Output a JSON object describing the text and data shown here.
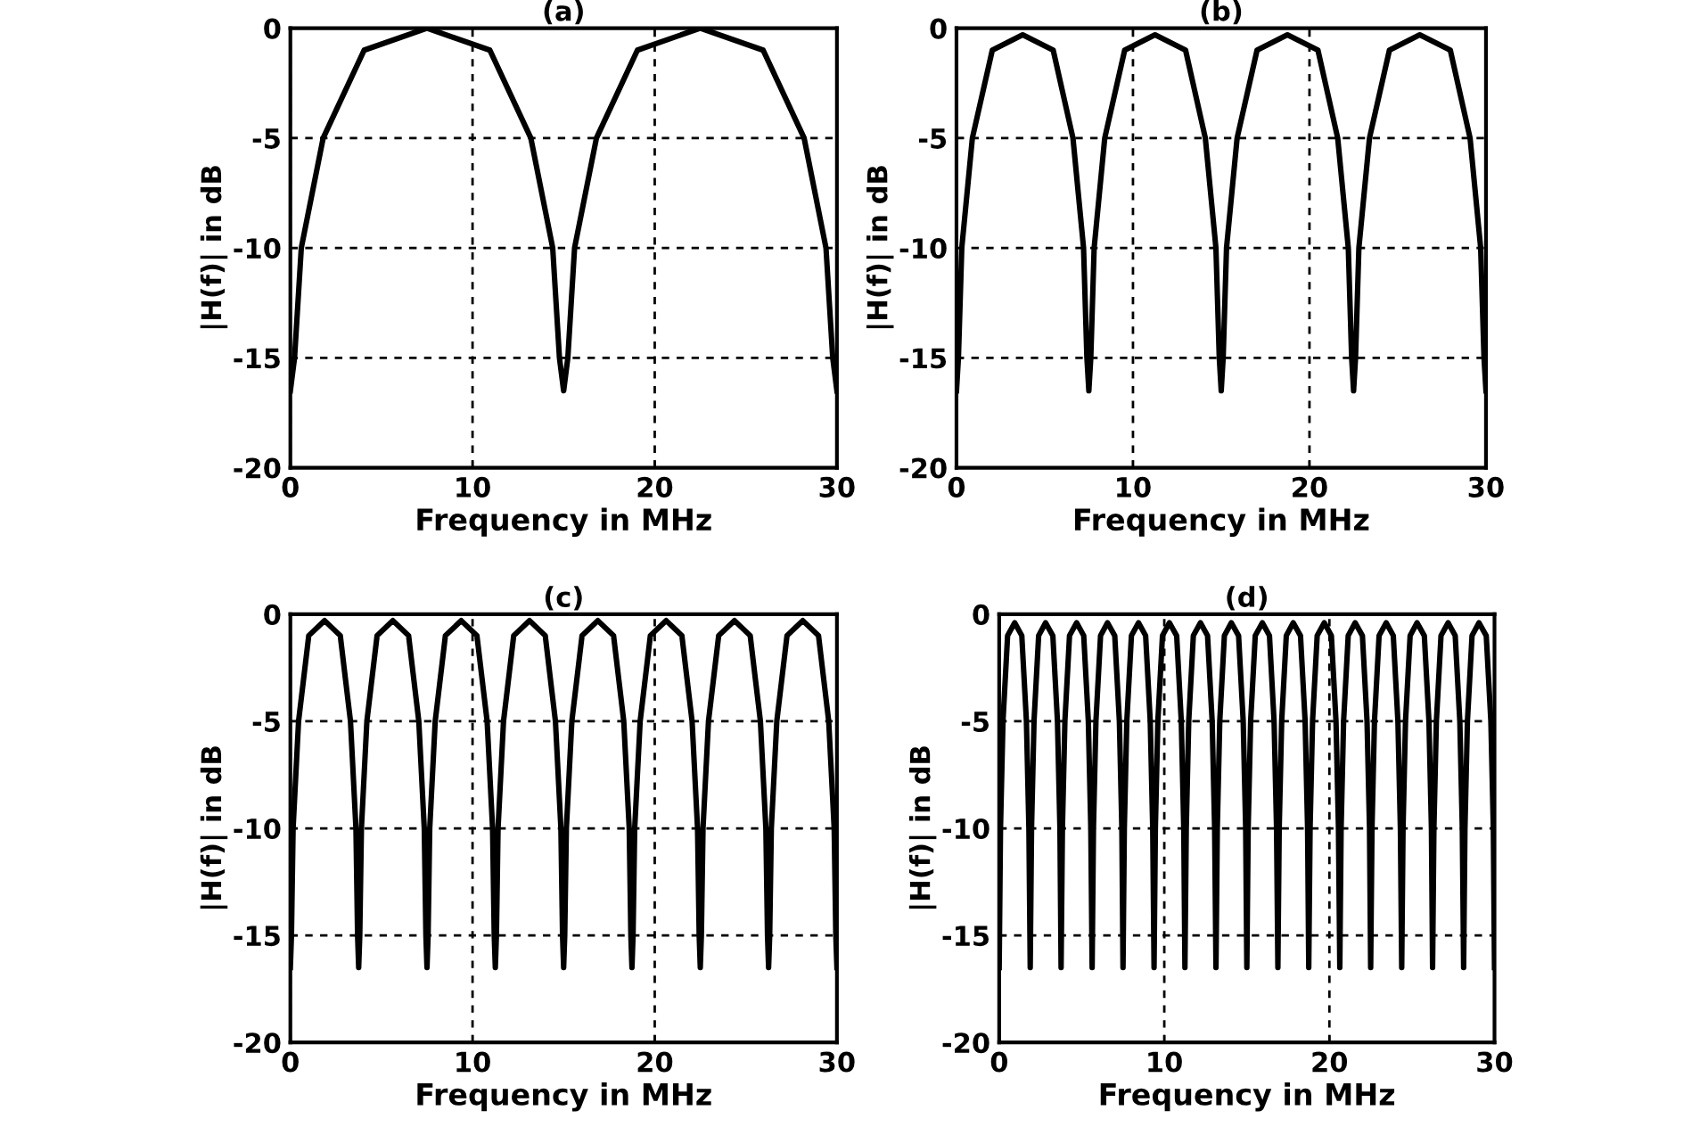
{
  "chart_data": [
    {
      "type": "line",
      "title": "(a)",
      "xlabel": "Frequency in MHz",
      "ylabel": "|H(f)| in dB",
      "xlim": [
        0,
        30
      ],
      "ylim": [
        -20,
        0
      ],
      "xticks": [
        0,
        10,
        20,
        30
      ],
      "yticks": [
        -20,
        -15,
        -10,
        -5,
        0
      ],
      "grid": true,
      "line_style": "solid",
      "series": [
        {
          "color": "#000000",
          "x": [
            0,
            0.23,
            0.6,
            1.8,
            4.05,
            7.5,
            10.95,
            13.2,
            14.4,
            14.77,
            15,
            15.23,
            15.6,
            16.8,
            19.05,
            22.5,
            25.95,
            28.2,
            29.4,
            29.77,
            30
          ],
          "values": [
            -16.5,
            -15,
            -10,
            -5,
            -1,
            0,
            -1,
            -5,
            -10,
            -15,
            -16.5,
            -15,
            -10,
            -5,
            -1,
            0,
            -1,
            -5,
            -10,
            -15,
            -16.5
          ]
        }
      ]
    },
    {
      "type": "line",
      "title": "(b)",
      "xlabel": "Frequency in MHz",
      "ylabel": "|H(f)| in dB",
      "xlim": [
        0,
        30
      ],
      "ylim": [
        -20,
        0
      ],
      "xticks": [
        0,
        10,
        20,
        30
      ],
      "yticks": [
        -20,
        -15,
        -10,
        -5,
        0
      ],
      "grid": true,
      "line_style": "solid",
      "series": [
        {
          "color": "#000000",
          "x": [
            0,
            0.11,
            0.3,
            0.9,
            2.03,
            3.75,
            5.48,
            6.6,
            7.2,
            7.39,
            7.5,
            7.61,
            7.8,
            8.4,
            9.53,
            11.25,
            12.98,
            14.1,
            14.7,
            14.89,
            15,
            15.11,
            15.3,
            15.9,
            17.03,
            18.75,
            20.48,
            21.6,
            22.2,
            22.39,
            22.5,
            22.61,
            22.8,
            23.4,
            24.53,
            26.25,
            27.98,
            29.1,
            29.7,
            29.89,
            30
          ],
          "values": [
            -16.5,
            -15,
            -10,
            -5,
            -1,
            -0.3,
            -1,
            -5,
            -10,
            -15,
            -16.5,
            -15,
            -10,
            -5,
            -1,
            -0.3,
            -1,
            -5,
            -10,
            -15,
            -16.5,
            -15,
            -10,
            -5,
            -1,
            -0.3,
            -1,
            -5,
            -10,
            -15,
            -16.5,
            -15,
            -10,
            -5,
            -1,
            -0.3,
            -1,
            -5,
            -10,
            -15,
            -16.5
          ]
        }
      ]
    },
    {
      "type": "line",
      "title": "(c)",
      "xlabel": "Frequency in MHz",
      "ylabel": "|H(f)| in dB",
      "xlim": [
        0,
        30
      ],
      "ylim": [
        -20,
        0
      ],
      "xticks": [
        0,
        10,
        20,
        30
      ],
      "yticks": [
        -20,
        -15,
        -10,
        -5,
        0
      ],
      "grid": true,
      "line_style": "solid",
      "series": [
        {
          "color": "#000000",
          "x": [
            0,
            0.06,
            0.15,
            0.45,
            1.01,
            1.88,
            2.74,
            3.3,
            3.6,
            3.69,
            3.75,
            3.81,
            3.9,
            4.2,
            4.76,
            5.63,
            6.49,
            7.05,
            7.35,
            7.44,
            7.5,
            7.56,
            7.65,
            7.95,
            8.51,
            9.38,
            10.24,
            10.8,
            11.1,
            11.19,
            11.25,
            11.31,
            11.4,
            11.7,
            12.26,
            13.13,
            13.99,
            14.55,
            14.85,
            14.94,
            15,
            15.06,
            15.15,
            15.45,
            16.01,
            16.88,
            17.74,
            18.3,
            18.6,
            18.69,
            18.75,
            18.81,
            18.9,
            19.2,
            19.76,
            20.63,
            21.49,
            22.05,
            22.35,
            22.44,
            22.5,
            22.56,
            22.65,
            22.95,
            23.51,
            24.38,
            25.24,
            25.8,
            26.1,
            26.19,
            26.25,
            26.31,
            26.4,
            26.7,
            27.26,
            28.13,
            28.99,
            29.55,
            29.85,
            29.94,
            30
          ],
          "values": [
            -16.5,
            -15,
            -10,
            -5,
            -1,
            -0.3,
            -1,
            -5,
            -10,
            -15,
            -16.5,
            -15,
            -10,
            -5,
            -1,
            -0.3,
            -1,
            -5,
            -10,
            -15,
            -16.5,
            -15,
            -10,
            -5,
            -1,
            -0.3,
            -1,
            -5,
            -10,
            -15,
            -16.5,
            -15,
            -10,
            -5,
            -1,
            -0.3,
            -1,
            -5,
            -10,
            -15,
            -16.5,
            -15,
            -10,
            -5,
            -1,
            -0.3,
            -1,
            -5,
            -10,
            -15,
            -16.5,
            -15,
            -10,
            -5,
            -1,
            -0.3,
            -1,
            -5,
            -10,
            -15,
            -16.5,
            -15,
            -10,
            -5,
            -1,
            -0.3,
            -1,
            -5,
            -10,
            -15,
            -16.5,
            -15,
            -10,
            -5,
            -1,
            -0.3,
            -1,
            -5,
            -10,
            -15,
            -16.5
          ]
        }
      ]
    },
    {
      "type": "line",
      "title": "(d)",
      "xlabel": "Frequency in MHz",
      "ylabel": "|H(f)| in dB",
      "xlim": [
        0,
        30
      ],
      "ylim": [
        -20,
        0
      ],
      "xticks": [
        0,
        10,
        20,
        30
      ],
      "yticks": [
        -20,
        -15,
        -10,
        -5,
        0
      ],
      "grid": true,
      "line_style": "solid",
      "series": [
        {
          "color": "#000000",
          "x": [
            0,
            0.08,
            0.23,
            0.51,
            0.94,
            1.37,
            1.65,
            1.8,
            1.88,
            1.96,
            2.11,
            2.39,
            2.81,
            3.25,
            3.53,
            3.68,
            3.75,
            3.83,
            3.98,
            4.26,
            4.69,
            5.12,
            5.4,
            5.55,
            5.63,
            5.71,
            5.86,
            6.14,
            6.56,
            7,
            7.28,
            7.43,
            7.5,
            7.58,
            7.73,
            8.01,
            8.44,
            8.87,
            9.15,
            9.3,
            9.38,
            9.46,
            9.61,
            9.89,
            10.31,
            10.75,
            11.03,
            11.18,
            11.25,
            11.33,
            11.48,
            11.76,
            12.19,
            12.62,
            12.9,
            13.05,
            13.13,
            13.21,
            13.36,
            13.64,
            14.06,
            14.5,
            14.78,
            14.93,
            15,
            15.08,
            15.23,
            15.51,
            15.94,
            16.37,
            16.65,
            16.8,
            16.88,
            16.96,
            17.11,
            17.39,
            17.81,
            18.25,
            18.53,
            18.68,
            18.75,
            18.83,
            18.98,
            19.26,
            19.69,
            20.12,
            20.4,
            20.55,
            20.63,
            20.71,
            20.86,
            21.14,
            21.56,
            22,
            22.28,
            22.43,
            22.5,
            22.58,
            22.73,
            23.01,
            23.44,
            23.87,
            24.15,
            24.3,
            24.38,
            24.46,
            24.61,
            24.89,
            25.31,
            25.75,
            26.03,
            26.18,
            26.25,
            26.33,
            26.48,
            26.76,
            27.19,
            27.62,
            27.9,
            28.05,
            28.13,
            28.21,
            28.36,
            28.64,
            29.06,
            29.5,
            29.78,
            29.93,
            30
          ],
          "values": [
            -16.5,
            -10,
            -5,
            -1,
            -0.4,
            -1,
            -5,
            -10,
            -16.5,
            -10,
            -5,
            -1,
            -0.4,
            -1,
            -5,
            -10,
            -16.5,
            -10,
            -5,
            -1,
            -0.4,
            -1,
            -5,
            -10,
            -16.5,
            -10,
            -5,
            -1,
            -0.4,
            -1,
            -5,
            -10,
            -16.5,
            -10,
            -5,
            -1,
            -0.4,
            -1,
            -5,
            -10,
            -16.5,
            -10,
            -5,
            -1,
            -0.4,
            -1,
            -5,
            -10,
            -16.5,
            -10,
            -5,
            -1,
            -0.4,
            -1,
            -5,
            -10,
            -16.5,
            -10,
            -5,
            -1,
            -0.4,
            -1,
            -5,
            -10,
            -16.5,
            -10,
            -5,
            -1,
            -0.4,
            -1,
            -5,
            -10,
            -16.5,
            -10,
            -5,
            -1,
            -0.4,
            -1,
            -5,
            -10,
            -16.5,
            -10,
            -5,
            -1,
            -0.4,
            -1,
            -5,
            -10,
            -16.5,
            -10,
            -5,
            -1,
            -0.4,
            -1,
            -5,
            -10,
            -16.5,
            -10,
            -5,
            -1,
            -0.4,
            -1,
            -5,
            -10,
            -16.5,
            -10,
            -5,
            -1,
            -0.4,
            -1,
            -5,
            -10,
            -16.5,
            -10,
            -5,
            -1,
            -0.4,
            -1,
            -5,
            -10,
            -16.5,
            -10,
            -5,
            -1,
            -0.4,
            -1,
            -5,
            -10,
            -16.5
          ]
        }
      ]
    }
  ]
}
